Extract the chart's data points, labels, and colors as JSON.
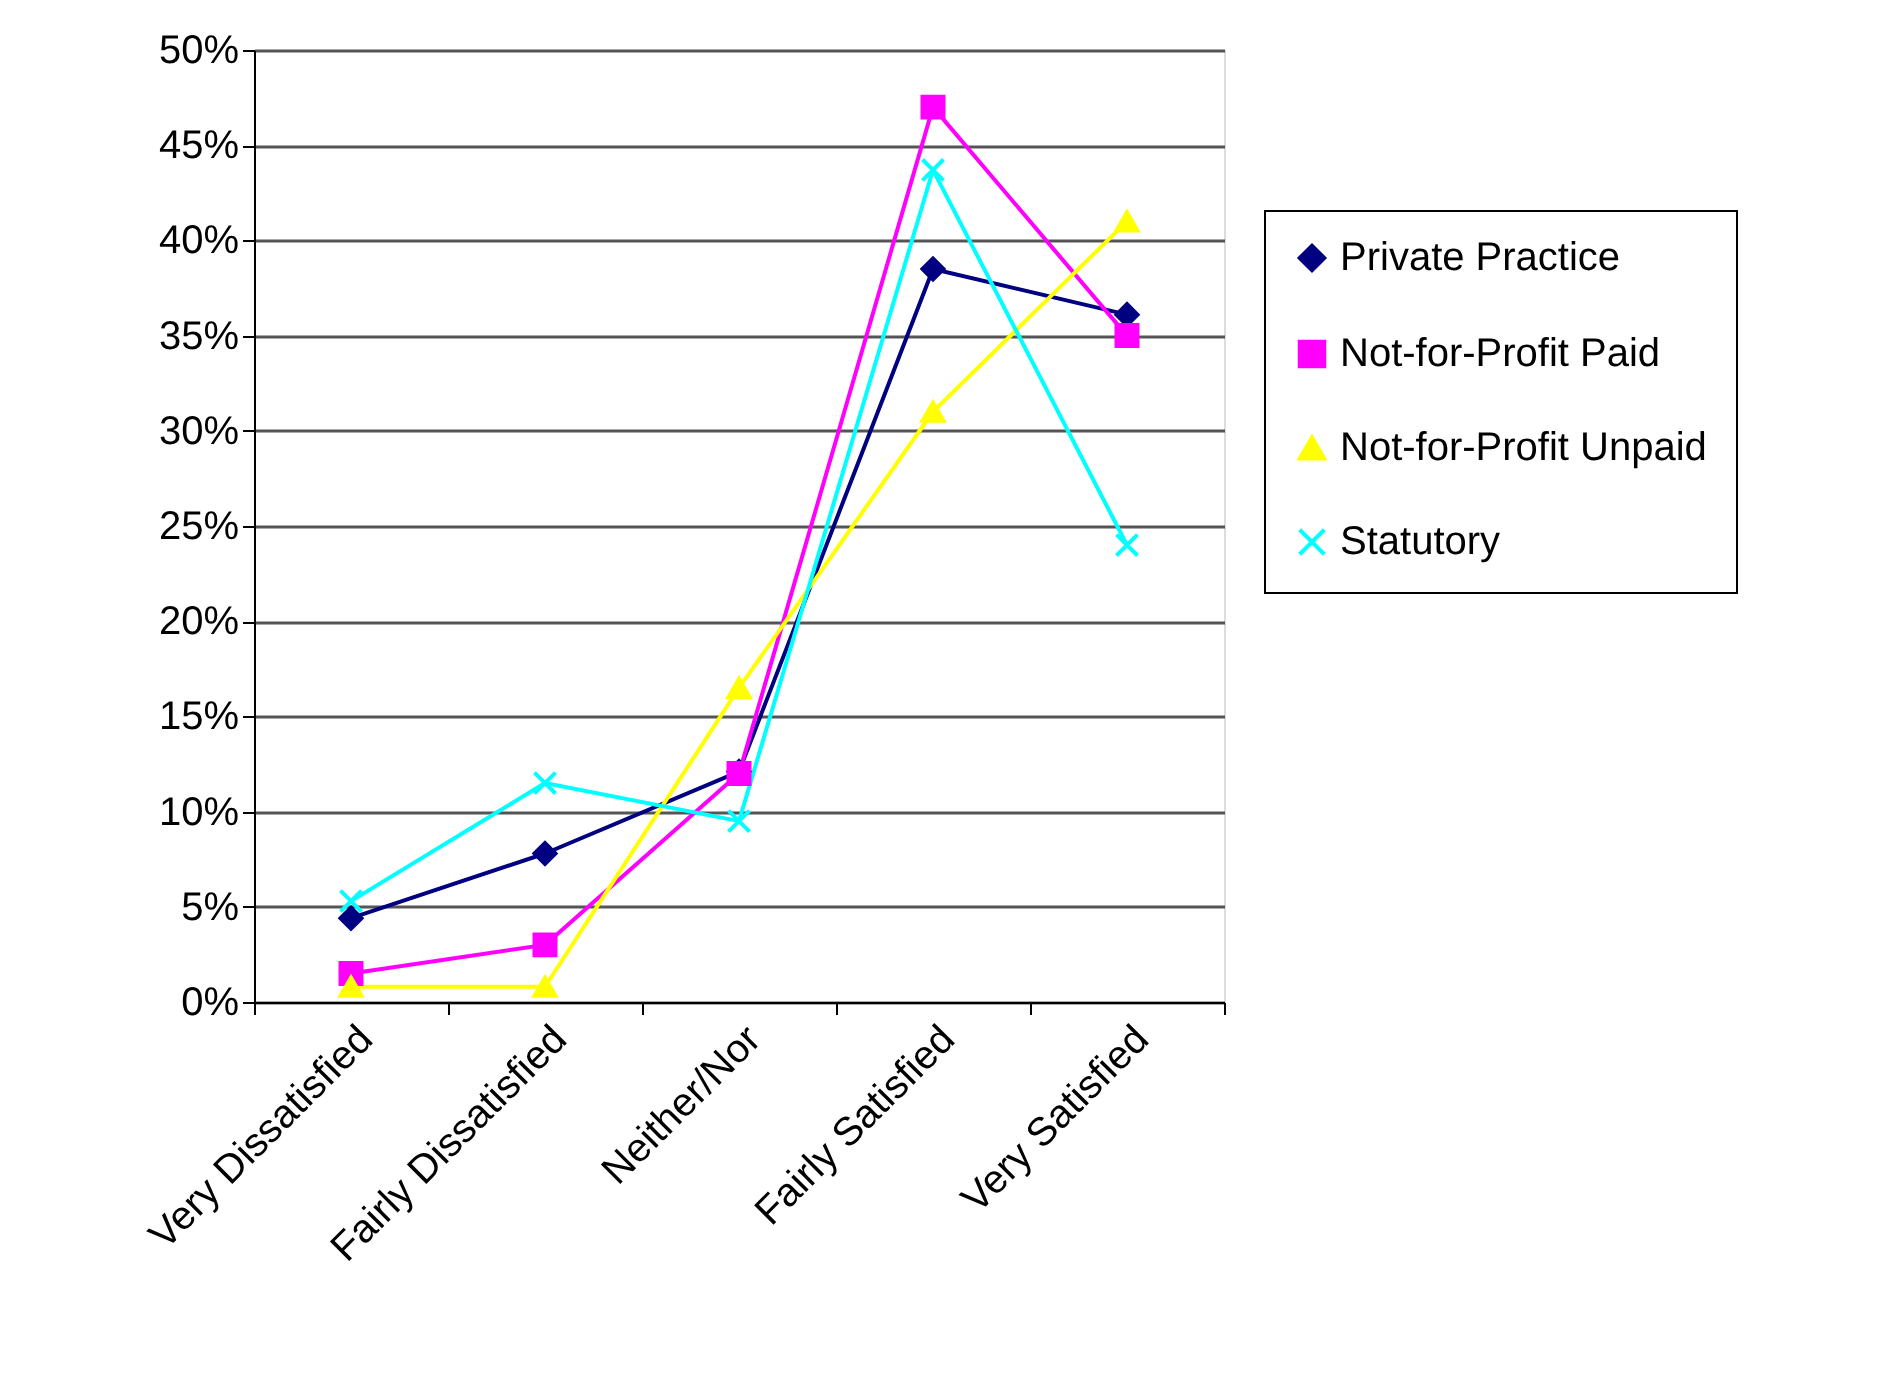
{
  "chart_data": {
    "type": "line",
    "categories": [
      "Very Dissatisfied",
      "Fairly Dissatisfied",
      "Neither/Nor",
      "Fairly Satisfied",
      "Very Satisfied"
    ],
    "series": [
      {
        "name": "Private Practice",
        "color": "#000080",
        "marker": "diamond",
        "values": [
          4.4,
          7.8,
          12.1,
          38.5,
          36.1
        ]
      },
      {
        "name": "Not-for-Profit Paid",
        "color": "#ff00ff",
        "marker": "square",
        "values": [
          1.5,
          3.0,
          12.0,
          47.0,
          35.0
        ]
      },
      {
        "name": "Not-for-Profit Unpaid",
        "color": "#ffff00",
        "marker": "triangle",
        "values": [
          0.8,
          0.8,
          16.5,
          31.0,
          41.0
        ]
      },
      {
        "name": "Statutory",
        "color": "#00ffff",
        "marker": "cross",
        "values": [
          5.3,
          11.5,
          9.5,
          43.7,
          24.0
        ]
      }
    ],
    "ylim": [
      0,
      50
    ],
    "yticks": [
      {
        "value": 0,
        "label": "0%"
      },
      {
        "value": 5,
        "label": "5%"
      },
      {
        "value": 10,
        "label": "10%"
      },
      {
        "value": 15,
        "label": "15%"
      },
      {
        "value": 20,
        "label": "20%"
      },
      {
        "value": 25,
        "label": "25%"
      },
      {
        "value": 30,
        "label": "30%"
      },
      {
        "value": 35,
        "label": "35%"
      },
      {
        "value": 40,
        "label": "40%"
      },
      {
        "value": 45,
        "label": "45%"
      },
      {
        "value": 50,
        "label": "50%"
      }
    ],
    "grid": "y",
    "legend": "right",
    "line_style": "solid"
  }
}
